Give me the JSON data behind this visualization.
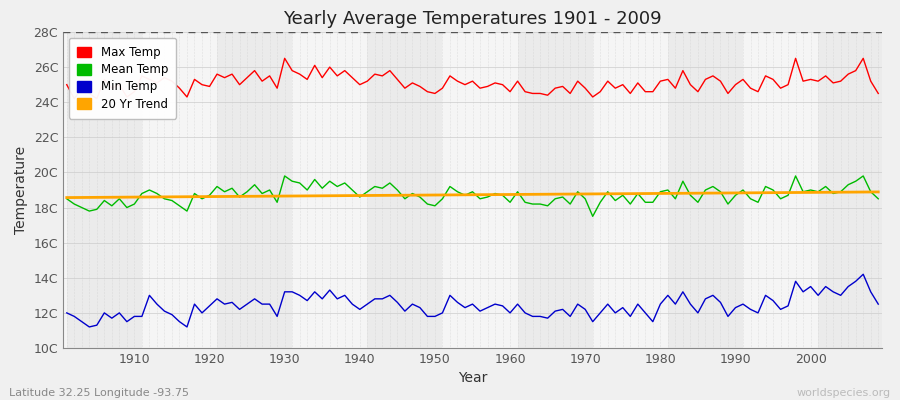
{
  "title": "Yearly Average Temperatures 1901 - 2009",
  "xlabel": "Year",
  "ylabel": "Temperature",
  "lat_lon_label": "Latitude 32.25 Longitude -93.75",
  "watermark": "worldspecies.org",
  "years": [
    1901,
    1902,
    1903,
    1904,
    1905,
    1906,
    1907,
    1908,
    1909,
    1910,
    1911,
    1912,
    1913,
    1914,
    1915,
    1916,
    1917,
    1918,
    1919,
    1920,
    1921,
    1922,
    1923,
    1924,
    1925,
    1926,
    1927,
    1928,
    1929,
    1930,
    1931,
    1932,
    1933,
    1934,
    1935,
    1936,
    1937,
    1938,
    1939,
    1940,
    1941,
    1942,
    1943,
    1944,
    1945,
    1946,
    1947,
    1948,
    1949,
    1950,
    1951,
    1952,
    1953,
    1954,
    1955,
    1956,
    1957,
    1958,
    1959,
    1960,
    1961,
    1962,
    1963,
    1964,
    1965,
    1966,
    1967,
    1968,
    1969,
    1970,
    1971,
    1972,
    1973,
    1974,
    1975,
    1976,
    1977,
    1978,
    1979,
    1980,
    1981,
    1982,
    1983,
    1984,
    1985,
    1986,
    1987,
    1988,
    1989,
    1990,
    1991,
    1992,
    1993,
    1994,
    1995,
    1996,
    1997,
    1998,
    1999,
    2000,
    2001,
    2002,
    2003,
    2004,
    2005,
    2006,
    2007,
    2008,
    2009
  ],
  "max_temp": [
    25.0,
    24.2,
    24.8,
    24.5,
    24.2,
    25.3,
    24.8,
    25.0,
    24.3,
    24.6,
    25.5,
    25.3,
    25.1,
    25.4,
    25.2,
    24.8,
    24.3,
    25.3,
    25.0,
    24.9,
    25.6,
    25.4,
    25.6,
    25.0,
    25.4,
    25.8,
    25.2,
    25.5,
    24.8,
    26.5,
    25.8,
    25.6,
    25.3,
    26.1,
    25.4,
    26.0,
    25.5,
    25.8,
    25.4,
    25.0,
    25.2,
    25.6,
    25.5,
    25.8,
    25.3,
    24.8,
    25.1,
    24.9,
    24.6,
    24.5,
    24.8,
    25.5,
    25.2,
    25.0,
    25.2,
    24.8,
    24.9,
    25.1,
    25.0,
    24.6,
    25.2,
    24.6,
    24.5,
    24.5,
    24.4,
    24.8,
    24.9,
    24.5,
    25.2,
    24.8,
    24.3,
    24.6,
    25.2,
    24.8,
    25.0,
    24.5,
    25.1,
    24.6,
    24.6,
    25.2,
    25.3,
    24.8,
    25.8,
    25.0,
    24.6,
    25.3,
    25.5,
    25.2,
    24.5,
    25.0,
    25.3,
    24.8,
    24.6,
    25.5,
    25.3,
    24.8,
    25.0,
    26.5,
    25.2,
    25.3,
    25.2,
    25.5,
    25.1,
    25.2,
    25.6,
    25.8,
    26.5,
    25.2,
    24.5
  ],
  "mean_temp": [
    18.5,
    18.2,
    18.0,
    17.8,
    17.9,
    18.4,
    18.1,
    18.5,
    18.0,
    18.2,
    18.8,
    19.0,
    18.8,
    18.5,
    18.4,
    18.1,
    17.8,
    18.8,
    18.5,
    18.7,
    19.2,
    18.9,
    19.1,
    18.6,
    18.9,
    19.3,
    18.8,
    19.0,
    18.3,
    19.8,
    19.5,
    19.4,
    19.0,
    19.6,
    19.1,
    19.5,
    19.2,
    19.4,
    19.0,
    18.6,
    18.9,
    19.2,
    19.1,
    19.4,
    19.0,
    18.5,
    18.8,
    18.6,
    18.2,
    18.1,
    18.5,
    19.2,
    18.9,
    18.7,
    18.9,
    18.5,
    18.6,
    18.8,
    18.7,
    18.3,
    18.9,
    18.3,
    18.2,
    18.2,
    18.1,
    18.5,
    18.6,
    18.2,
    18.9,
    18.5,
    17.5,
    18.3,
    18.9,
    18.4,
    18.7,
    18.2,
    18.8,
    18.3,
    18.3,
    18.9,
    19.0,
    18.5,
    19.5,
    18.7,
    18.3,
    19.0,
    19.2,
    18.9,
    18.2,
    18.7,
    19.0,
    18.5,
    18.3,
    19.2,
    19.0,
    18.5,
    18.7,
    19.8,
    18.9,
    19.0,
    18.9,
    19.2,
    18.8,
    18.9,
    19.3,
    19.5,
    19.8,
    18.9,
    18.5
  ],
  "min_temp": [
    12.0,
    11.8,
    11.5,
    11.2,
    11.3,
    12.0,
    11.7,
    12.0,
    11.5,
    11.8,
    11.8,
    13.0,
    12.5,
    12.1,
    11.9,
    11.5,
    11.2,
    12.5,
    12.0,
    12.4,
    12.8,
    12.5,
    12.6,
    12.2,
    12.5,
    12.8,
    12.5,
    12.5,
    11.8,
    13.2,
    13.2,
    13.0,
    12.7,
    13.2,
    12.8,
    13.3,
    12.8,
    13.0,
    12.5,
    12.2,
    12.5,
    12.8,
    12.8,
    13.0,
    12.6,
    12.1,
    12.5,
    12.3,
    11.8,
    11.8,
    12.0,
    13.0,
    12.6,
    12.3,
    12.5,
    12.1,
    12.3,
    12.5,
    12.4,
    12.0,
    12.5,
    12.0,
    11.8,
    11.8,
    11.7,
    12.1,
    12.2,
    11.8,
    12.5,
    12.2,
    11.5,
    12.0,
    12.5,
    12.0,
    12.3,
    11.8,
    12.5,
    12.0,
    11.5,
    12.5,
    13.0,
    12.5,
    13.2,
    12.5,
    12.0,
    12.8,
    13.0,
    12.6,
    11.8,
    12.3,
    12.5,
    12.2,
    12.0,
    13.0,
    12.7,
    12.2,
    12.4,
    13.8,
    13.2,
    13.5,
    13.0,
    13.5,
    13.2,
    13.0,
    13.5,
    13.8,
    14.2,
    13.2,
    12.5
  ],
  "trend_color": "#FFA500",
  "max_color": "#FF0000",
  "mean_color": "#00BB00",
  "min_color": "#0000CC",
  "ylim_min": 10,
  "ylim_max": 28,
  "yticks": [
    10,
    12,
    14,
    16,
    18,
    20,
    22,
    24,
    26,
    28
  ],
  "ytick_labels": [
    "10C",
    "12C",
    "14C",
    "16C",
    "18C",
    "20C",
    "22C",
    "24C",
    "26C",
    "28C"
  ],
  "xticks": [
    1910,
    1920,
    1930,
    1940,
    1950,
    1960,
    1970,
    1980,
    1990,
    2000
  ],
  "bg_even": "#EBEBEB",
  "bg_odd": "#F5F5F5",
  "fig_bg": "#F0F0F0",
  "grid_color": "#CCCCCC",
  "title_fontsize": 13
}
